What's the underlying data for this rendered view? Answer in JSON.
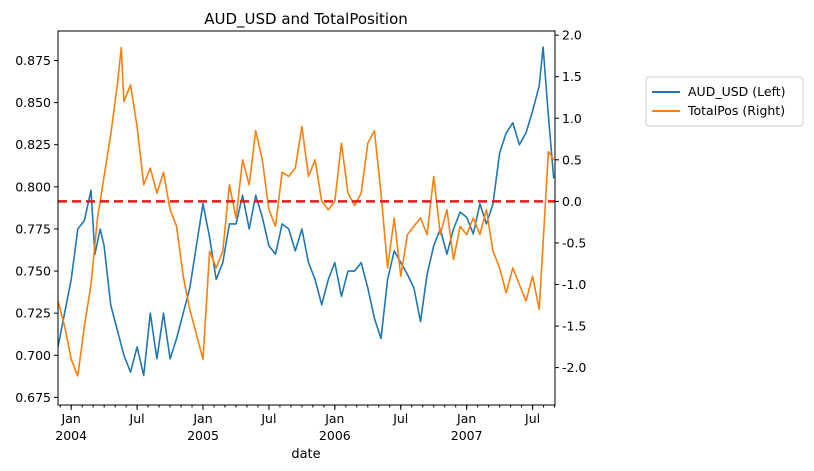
{
  "chart_data": {
    "type": "line",
    "title": "AUD_USD and TotalPosition",
    "xlabel": "date",
    "x_range": [
      2003.9,
      2007.67
    ],
    "x_ticks": [
      {
        "x": 2004.0,
        "label": "Jan",
        "sub": "2004"
      },
      {
        "x": 2004.5,
        "label": "Jul",
        "sub": ""
      },
      {
        "x": 2005.0,
        "label": "Jan",
        "sub": "2005"
      },
      {
        "x": 2005.5,
        "label": "Jul",
        "sub": ""
      },
      {
        "x": 2006.0,
        "label": "Jan",
        "sub": "2006"
      },
      {
        "x": 2006.5,
        "label": "Jul",
        "sub": ""
      },
      {
        "x": 2007.0,
        "label": "Jan",
        "sub": "2007"
      },
      {
        "x": 2007.5,
        "label": "Jul",
        "sub": ""
      }
    ],
    "y_left": {
      "ylim": [
        0.6705,
        0.8925
      ],
      "ticks": [
        "0.675",
        "0.700",
        "0.725",
        "0.750",
        "0.775",
        "0.800",
        "0.825",
        "0.850",
        "0.875"
      ]
    },
    "y_right": {
      "ylim": [
        -2.45,
        2.05
      ],
      "ticks": [
        "-2.0",
        "-1.5",
        "-1.0",
        "-0.5",
        "0.0",
        "0.5",
        "1.0",
        "1.5",
        "2.0"
      ]
    },
    "reference_line": {
      "axis": "right",
      "y": 0.0,
      "color": "#e41a1c",
      "style": "dashed"
    },
    "series": [
      {
        "name": "AUD_USD (Left)",
        "axis": "left",
        "color": "#1f77b4",
        "x": [
          2003.9,
          2003.95,
          2004.0,
          2004.05,
          2004.1,
          2004.15,
          2004.18,
          2004.22,
          2004.25,
          2004.3,
          2004.35,
          2004.4,
          2004.45,
          2004.5,
          2004.55,
          2004.6,
          2004.65,
          2004.7,
          2004.75,
          2004.8,
          2004.85,
          2004.9,
          2004.95,
          2005.0,
          2005.05,
          2005.1,
          2005.15,
          2005.2,
          2005.25,
          2005.3,
          2005.35,
          2005.4,
          2005.45,
          2005.5,
          2005.55,
          2005.6,
          2005.65,
          2005.7,
          2005.75,
          2005.8,
          2005.85,
          2005.9,
          2005.95,
          2006.0,
          2006.05,
          2006.1,
          2006.15,
          2006.2,
          2006.25,
          2006.3,
          2006.35,
          2006.4,
          2006.45,
          2006.5,
          2006.55,
          2006.6,
          2006.65,
          2006.7,
          2006.75,
          2006.8,
          2006.85,
          2006.9,
          2006.95,
          2007.0,
          2007.05,
          2007.1,
          2007.15,
          2007.2,
          2007.25,
          2007.3,
          2007.35,
          2007.4,
          2007.45,
          2007.5,
          2007.55,
          2007.58,
          2007.62,
          2007.66
        ],
        "values": [
          0.705,
          0.725,
          0.745,
          0.775,
          0.78,
          0.798,
          0.76,
          0.775,
          0.765,
          0.73,
          0.715,
          0.7,
          0.69,
          0.705,
          0.688,
          0.725,
          0.698,
          0.725,
          0.698,
          0.71,
          0.725,
          0.74,
          0.765,
          0.79,
          0.77,
          0.745,
          0.755,
          0.778,
          0.778,
          0.795,
          0.775,
          0.795,
          0.782,
          0.765,
          0.76,
          0.778,
          0.775,
          0.762,
          0.775,
          0.755,
          0.745,
          0.73,
          0.745,
          0.755,
          0.735,
          0.75,
          0.75,
          0.755,
          0.74,
          0.722,
          0.71,
          0.745,
          0.762,
          0.755,
          0.748,
          0.74,
          0.72,
          0.748,
          0.765,
          0.775,
          0.76,
          0.775,
          0.785,
          0.782,
          0.772,
          0.79,
          0.778,
          0.79,
          0.82,
          0.832,
          0.838,
          0.825,
          0.832,
          0.845,
          0.86,
          0.883,
          0.842,
          0.805
        ]
      },
      {
        "name": "TotalPos (Right)",
        "axis": "right",
        "color": "#ff7f0e",
        "x": [
          2003.9,
          2003.95,
          2004.0,
          2004.05,
          2004.1,
          2004.15,
          2004.2,
          2004.25,
          2004.3,
          2004.35,
          2004.38,
          2004.4,
          2004.45,
          2004.5,
          2004.55,
          2004.6,
          2004.65,
          2004.7,
          2004.75,
          2004.8,
          2004.85,
          2004.9,
          2004.95,
          2005.0,
          2005.05,
          2005.1,
          2005.15,
          2005.2,
          2005.25,
          2005.3,
          2005.35,
          2005.4,
          2005.45,
          2005.5,
          2005.55,
          2005.6,
          2005.65,
          2005.7,
          2005.75,
          2005.8,
          2005.85,
          2005.9,
          2005.95,
          2006.0,
          2006.05,
          2006.1,
          2006.15,
          2006.2,
          2006.25,
          2006.3,
          2006.35,
          2006.4,
          2006.45,
          2006.5,
          2006.55,
          2006.6,
          2006.65,
          2006.7,
          2006.75,
          2006.8,
          2006.85,
          2006.9,
          2006.95,
          2007.0,
          2007.05,
          2007.1,
          2007.15,
          2007.2,
          2007.25,
          2007.3,
          2007.35,
          2007.4,
          2007.45,
          2007.5,
          2007.55,
          2007.58,
          2007.62,
          2007.66
        ],
        "values": [
          -1.2,
          -1.5,
          -1.9,
          -2.1,
          -1.5,
          -1.0,
          -0.2,
          0.3,
          0.8,
          1.4,
          1.85,
          1.2,
          1.4,
          0.9,
          0.2,
          0.4,
          0.1,
          0.35,
          -0.1,
          -0.3,
          -0.9,
          -1.3,
          -1.6,
          -1.9,
          -0.6,
          -0.8,
          -0.6,
          0.2,
          -0.2,
          0.5,
          0.2,
          0.85,
          0.5,
          -0.1,
          -0.3,
          0.35,
          0.3,
          0.4,
          0.9,
          0.3,
          0.5,
          0.0,
          -0.1,
          0.0,
          0.7,
          0.1,
          -0.05,
          0.1,
          0.7,
          0.85,
          0.1,
          -0.8,
          -0.2,
          -0.9,
          -0.4,
          -0.3,
          -0.2,
          -0.4,
          0.3,
          -0.4,
          -0.1,
          -0.7,
          -0.3,
          -0.4,
          -0.2,
          -0.4,
          -0.1,
          -0.6,
          -0.8,
          -1.1,
          -0.8,
          -1.0,
          -1.2,
          -0.9,
          -1.3,
          -0.5,
          0.6,
          0.5
        ]
      }
    ]
  }
}
